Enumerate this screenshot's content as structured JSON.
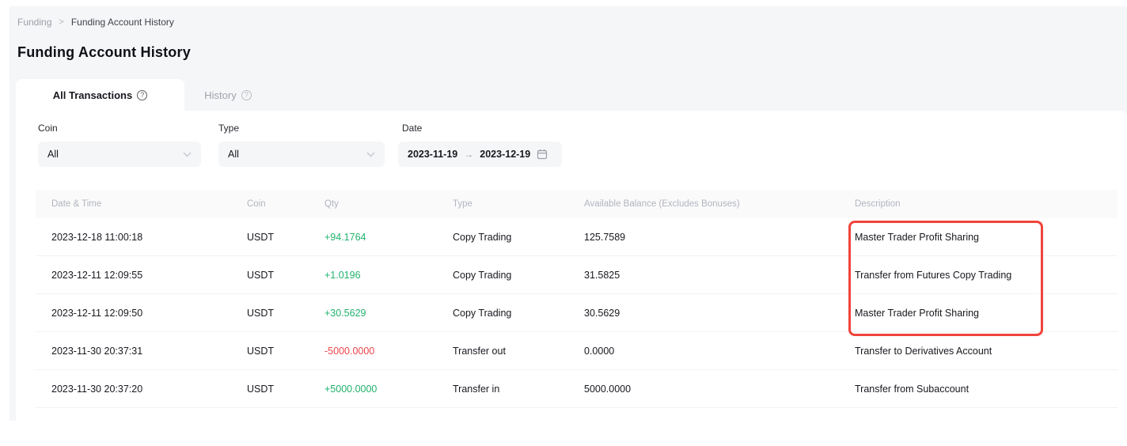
{
  "breadcrumb": {
    "items": [
      "Funding",
      "Funding Account History"
    ],
    "separator": ">"
  },
  "page_title": "Funding Account History",
  "tabs": {
    "all_transactions": "All Transactions",
    "history": "History",
    "help_icon_glyph": "?"
  },
  "filters": {
    "coin": {
      "label": "Coin",
      "value": "All"
    },
    "type": {
      "label": "Type",
      "value": "All"
    },
    "date": {
      "label": "Date",
      "start": "2023-11-19",
      "arrow": "→",
      "end": "2023-12-19"
    }
  },
  "table": {
    "columns": [
      "Date & Time",
      "Coin",
      "Qty",
      "Type",
      "Available Balance (Excludes Bonuses)",
      "Description"
    ],
    "rows": [
      {
        "datetime": "2023-12-18 11:00:18",
        "coin": "USDT",
        "qty": "+94.1764",
        "type": "Copy Trading",
        "balance": "125.7589",
        "description": "Master Trader Profit Sharing"
      },
      {
        "datetime": "2023-12-11 12:09:55",
        "coin": "USDT",
        "qty": "+1.0196",
        "type": "Copy Trading",
        "balance": "31.5825",
        "description": "Transfer from Futures Copy Trading"
      },
      {
        "datetime": "2023-12-11 12:09:50",
        "coin": "USDT",
        "qty": "+30.5629",
        "type": "Copy Trading",
        "balance": "30.5629",
        "description": "Master Trader Profit Sharing"
      },
      {
        "datetime": "2023-11-30 20:37:31",
        "coin": "USDT",
        "qty": "-5000.0000",
        "type": "Transfer out",
        "balance": "0.0000",
        "description": "Transfer to Derivatives Account"
      },
      {
        "datetime": "2023-11-30 20:37:20",
        "coin": "USDT",
        "qty": "+5000.0000",
        "type": "Transfer in",
        "balance": "5000.0000",
        "description": "Transfer from Subaccount"
      }
    ]
  },
  "annotation": {
    "highlighted_rows": [
      0,
      1,
      2
    ],
    "color": "#f0443b"
  },
  "colors": {
    "positive_qty": "#20b26c",
    "negative_qty": "#ef454a",
    "annotation_red": "#f0443b",
    "page_background": "#f5f6f8"
  },
  "icons": {
    "chevron_down": "chevron-down-icon",
    "calendar": "calendar-icon",
    "help": "help-icon"
  }
}
